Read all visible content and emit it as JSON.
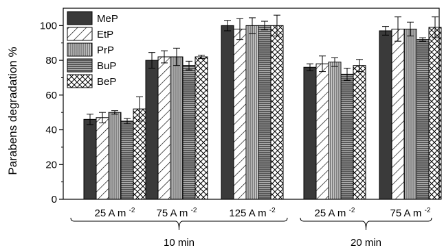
{
  "chart_data": {
    "type": "bar",
    "ylabel": "Parabens degradation %",
    "ylim": [
      0,
      110
    ],
    "yticks": [
      0,
      20,
      40,
      60,
      80,
      100
    ],
    "grid": false,
    "legend_position": "top-left",
    "unit_superscript": "-2",
    "categories": [
      {
        "label": "25 A m",
        "group": 0
      },
      {
        "label": "75 A m",
        "group": 0
      },
      {
        "label": "125 A m",
        "group": 0
      },
      {
        "label": "25 A m",
        "group": 1
      },
      {
        "label": "75 A m",
        "group": 1
      }
    ],
    "groups": [
      {
        "label": "10 min"
      },
      {
        "label": "20 min"
      }
    ],
    "series": [
      {
        "name": "MeP",
        "pattern": "solid",
        "values": [
          46,
          80,
          100,
          76,
          97
        ],
        "errors": [
          3,
          4.5,
          3,
          2,
          2.5
        ]
      },
      {
        "name": "EtP",
        "pattern": "diag",
        "values": [
          47,
          82,
          98,
          78,
          98
        ],
        "errors": [
          3,
          3.5,
          6,
          4.5,
          7
        ]
      },
      {
        "name": "PrP",
        "pattern": "vertical",
        "values": [
          50,
          82,
          100,
          79,
          98
        ],
        "errors": [
          1,
          5,
          4.5,
          2.5,
          4
        ]
      },
      {
        "name": "BuP",
        "pattern": "horizontal",
        "values": [
          45,
          77,
          100,
          72,
          92
        ],
        "errors": [
          1.5,
          2.5,
          2.5,
          3.5,
          1
        ]
      },
      {
        "name": "BeP",
        "pattern": "cross",
        "values": [
          52,
          82,
          100,
          77,
          99
        ],
        "errors": [
          7,
          1,
          6,
          3.5,
          6
        ]
      }
    ]
  }
}
